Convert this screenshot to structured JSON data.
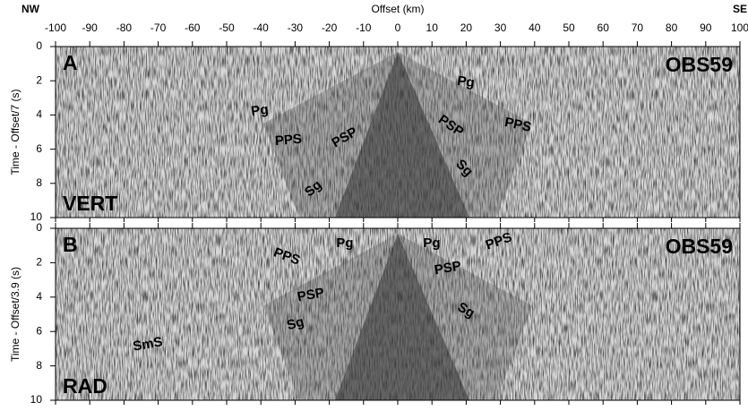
{
  "chart_data": [
    {
      "type": "seismic",
      "title": "Offset (km)",
      "left_label": "NW",
      "right_label": "SE",
      "xlim": [
        -100,
        100
      ],
      "xticks": [
        -100,
        -90,
        -80,
        -70,
        -60,
        -50,
        -40,
        -30,
        -20,
        -10,
        0,
        10,
        20,
        30,
        40,
        50,
        60,
        70,
        80,
        90,
        100
      ],
      "panel": "A",
      "component": "VERT",
      "station": "OBS59",
      "ylabel": "Time - Offset/7 (s)",
      "ylim": [
        10,
        0
      ],
      "yticks": [
        0,
        2,
        4,
        6,
        8,
        10
      ],
      "annotations": [
        "Pg",
        "PPS",
        "PSP",
        "Sg",
        "Pg",
        "PSP",
        "PPS",
        "Sg"
      ]
    },
    {
      "type": "seismic",
      "xlim": [
        -100,
        100
      ],
      "panel": "B",
      "component": "RAD",
      "station": "OBS59",
      "ylabel": "Time - Offset/3.9 (s)",
      "ylim": [
        10,
        0
      ],
      "yticks": [
        0,
        2,
        4,
        6,
        8,
        10
      ],
      "annotations": [
        "PPS",
        "Pg",
        "Pg",
        "PPS",
        "PSP",
        "PSP",
        "Sg",
        "Sg",
        "SmS"
      ]
    }
  ]
}
